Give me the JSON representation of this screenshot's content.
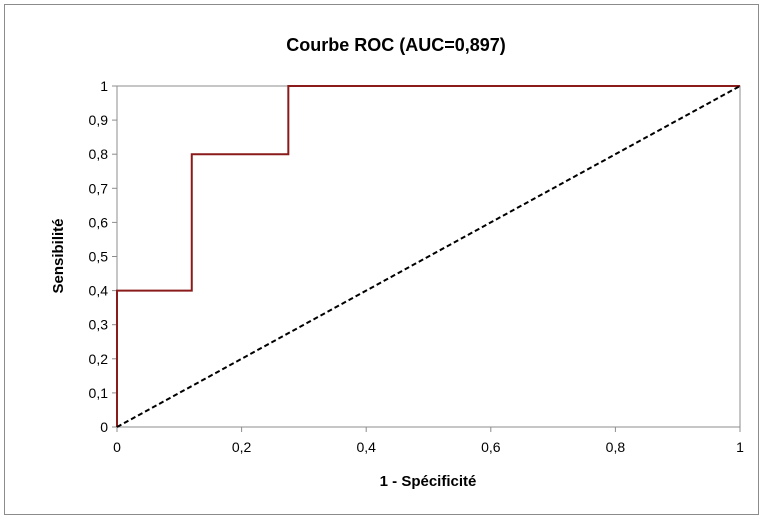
{
  "chart_data": {
    "type": "line",
    "title": "Courbe ROC (AUC=0,897)",
    "xlabel": "1 - Spécificité",
    "ylabel": "Sensibilité",
    "xlim": [
      0,
      1
    ],
    "ylim": [
      0,
      1
    ],
    "x_ticks": [
      "0",
      "0,2",
      "0,4",
      "0,6",
      "0,8",
      "1"
    ],
    "y_ticks": [
      "0",
      "0,1",
      "0,2",
      "0,3",
      "0,4",
      "0,5",
      "0,6",
      "0,7",
      "0,8",
      "0,9",
      "1"
    ],
    "grid": false,
    "series": [
      {
        "style": "step",
        "color": "#8b1a1a",
        "points": [
          [
            0,
            0
          ],
          [
            0,
            0.4
          ],
          [
            0.12,
            0.4
          ],
          [
            0.12,
            0.8
          ],
          [
            0.275,
            0.8
          ],
          [
            0.275,
            1
          ],
          [
            1,
            1
          ]
        ]
      },
      {
        "style": "dashed",
        "color": "#000000",
        "points": [
          [
            0,
            0
          ],
          [
            1,
            1
          ]
        ]
      }
    ]
  }
}
